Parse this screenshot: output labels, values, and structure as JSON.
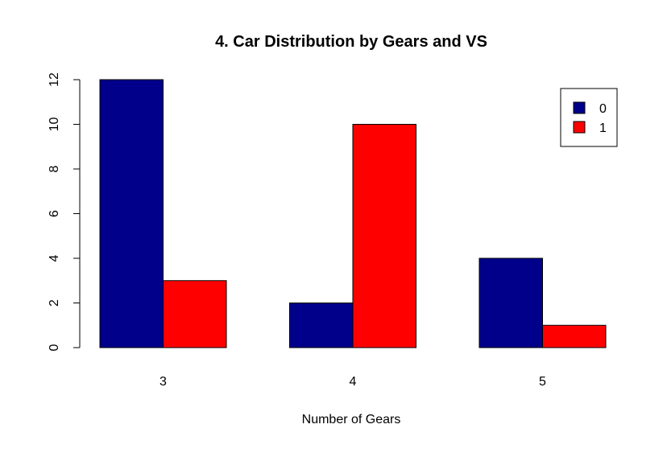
{
  "chart_data": {
    "type": "bar",
    "title": "4. Car Distribution by Gears and VS",
    "xlabel": "Number of Gears",
    "ylabel": "",
    "categories": [
      "3",
      "4",
      "5"
    ],
    "series": [
      {
        "name": "0",
        "values": [
          12,
          2,
          4
        ],
        "color": "#00008B"
      },
      {
        "name": "1",
        "values": [
          3,
          10,
          1
        ],
        "color": "#FF0000"
      }
    ],
    "ylim": [
      0,
      12
    ],
    "yticks": [
      0,
      2,
      4,
      6,
      8,
      10,
      12
    ],
    "grid": false,
    "legend_position": "top-right"
  }
}
